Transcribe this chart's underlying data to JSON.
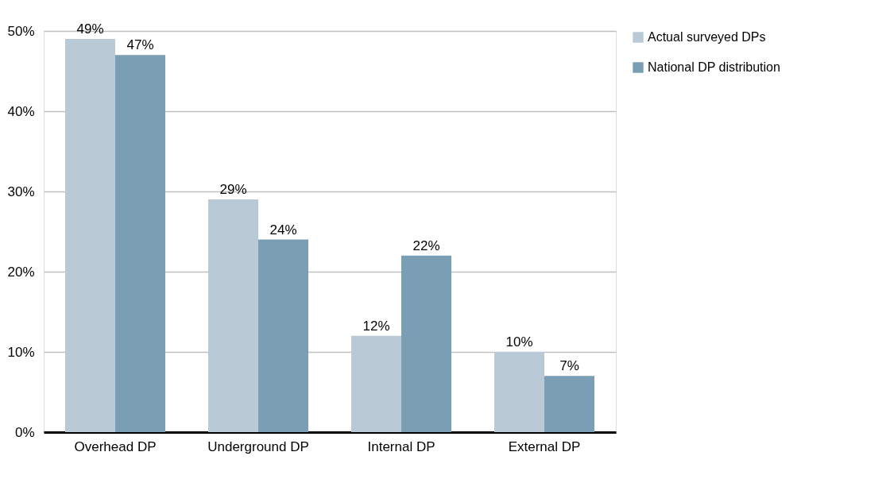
{
  "chart_data": {
    "type": "bar",
    "categories": [
      "Overhead DP",
      "Underground DP",
      "Internal DP",
      "External DP"
    ],
    "series": [
      {
        "name": "Actual surveyed DPs",
        "color": "#b9cad6",
        "values": [
          49,
          29,
          12,
          10
        ],
        "value_labels": [
          "49%",
          "29%",
          "12%",
          "10%"
        ]
      },
      {
        "name": "National DP distribution",
        "color": "#7a9fb5",
        "values": [
          47,
          24,
          22,
          7
        ],
        "value_labels": [
          "47%",
          "24%",
          "22%",
          "7%"
        ]
      }
    ],
    "ylim": [
      0,
      50
    ],
    "yticks": [
      {
        "value": 0,
        "label": "0%"
      },
      {
        "value": 10,
        "label": "10%"
      },
      {
        "value": 20,
        "label": "20%"
      },
      {
        "value": 30,
        "label": "30%"
      },
      {
        "value": 40,
        "label": "40%"
      },
      {
        "value": 50,
        "label": "50%"
      }
    ],
    "grid": "y",
    "legend": "right"
  }
}
